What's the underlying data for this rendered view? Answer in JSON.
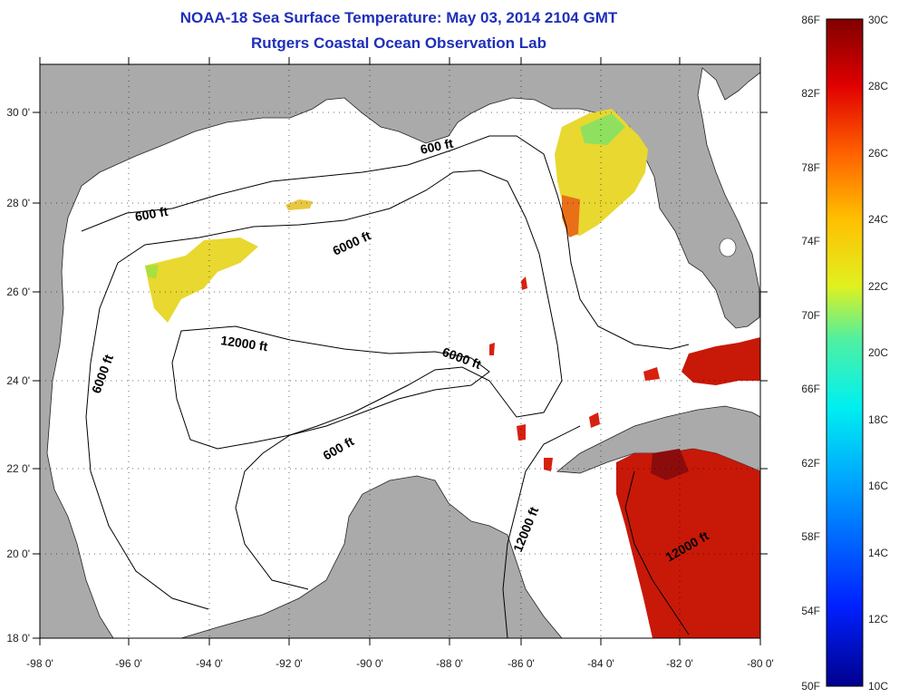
{
  "header": {
    "title": "NOAA-18 Sea Surface Temperature:  May 03, 2014 2104 GMT",
    "subtitle": "Rutgers Coastal Ocean Observation Lab"
  },
  "axes": {
    "lon_labels": [
      "-98 0'",
      "-96 0'",
      "-94 0'",
      "-92 0'",
      "-90 0'",
      "-88 0'",
      "-86 0'",
      "-84 0'",
      "-82 0'",
      "-80 0'"
    ],
    "lat_labels": [
      "30 0'",
      "28 0'",
      "26 0'",
      "24 0'",
      "22 0'",
      "20 0'",
      "18 0'"
    ]
  },
  "contours": {
    "labels": [
      "600 ft",
      "600 ft",
      "600 ft",
      "6000 ft",
      "6000 ft",
      "6000 ft",
      "12000 ft",
      "12000 ft",
      "12000 ft"
    ]
  },
  "colorbar": {
    "f_labels": [
      "86F",
      "82F",
      "78F",
      "74F",
      "70F",
      "66F",
      "62F",
      "58F",
      "54F",
      "50F"
    ],
    "c_labels": [
      "30C",
      "28C",
      "26C",
      "24C",
      "22C",
      "20C",
      "18C",
      "16C",
      "14C",
      "12C",
      "10C"
    ]
  },
  "colors": {
    "land": "#aaaaaa",
    "water_nodata": "#ffffff",
    "title": "#1f2fb8",
    "sst_warm": "#c81808",
    "sst_hot": "#8c0c0c",
    "sst_yellow": "#e8d830",
    "sst_orange": "#e87018"
  }
}
